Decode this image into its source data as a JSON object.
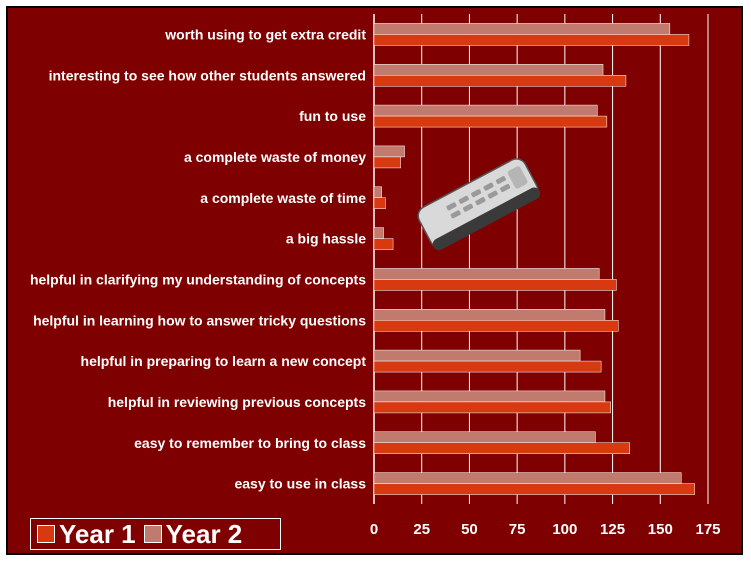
{
  "chart_data": {
    "type": "bar",
    "orientation": "horizontal",
    "categories": [
      "worth using to get extra credit",
      "interesting to see how other students answered",
      "fun to use",
      "a complete waste of money",
      "a complete waste of time",
      "a big hassle",
      "helpful in clarifying my understanding of concepts",
      "helpful in learning how to answer tricky questions",
      "helpful in preparing to learn a new concept",
      "helpful in reviewing previous concepts",
      "easy to remember to bring to class",
      "easy to use in class"
    ],
    "series": [
      {
        "name": "Year 2",
        "color": "#c07a6e",
        "values": [
          155,
          120,
          117,
          16,
          4,
          5,
          118,
          121,
          108,
          121,
          116,
          161
        ]
      },
      {
        "name": "Year 1",
        "color": "#d73a10",
        "values": [
          165,
          132,
          122,
          14,
          6,
          10,
          127,
          128,
          119,
          124,
          134,
          168
        ]
      }
    ],
    "xlim": [
      0,
      175
    ],
    "xticks": [
      "0",
      "25",
      "50",
      "75",
      "100",
      "125",
      "150",
      "175"
    ],
    "grid": true,
    "legend": {
      "placement": "bottom-left",
      "items": [
        {
          "label": "Year 1",
          "color": "#d73a10"
        },
        {
          "label": "Year 2",
          "color": "#c07a6e"
        }
      ]
    }
  },
  "colors": {
    "background": "#7f0000",
    "gridline": "#ffffff",
    "text": "#ffffff"
  },
  "image": {
    "name": "clicker-remote-icon"
  }
}
